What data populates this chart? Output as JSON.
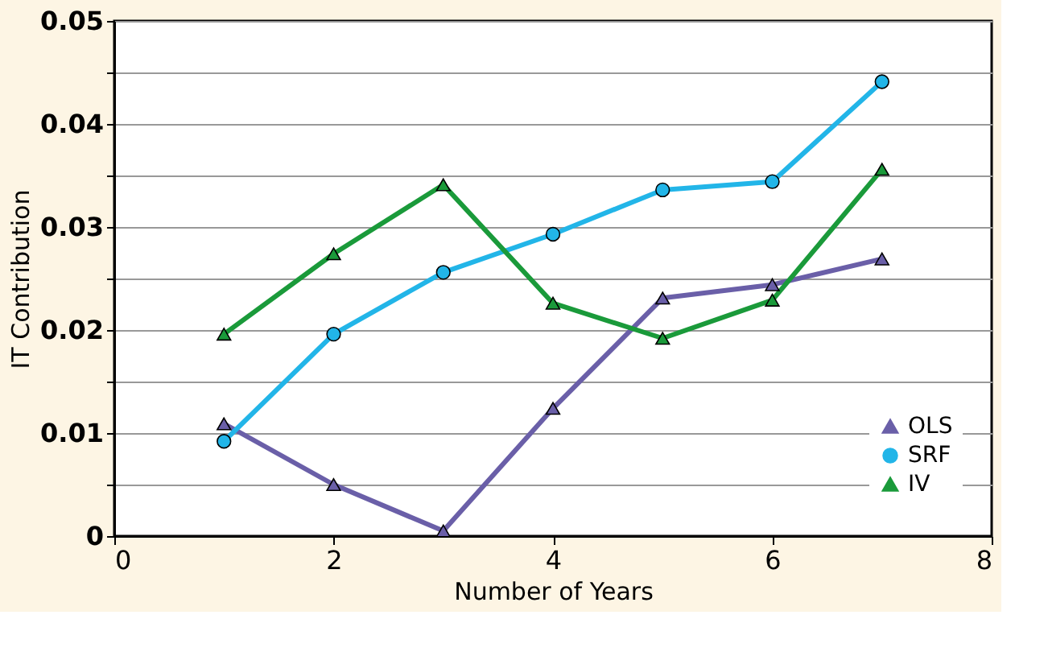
{
  "chart_data": {
    "type": "line",
    "xlabel": "Number of Years",
    "ylabel": "IT Contribution",
    "x": [
      1,
      2,
      3,
      4,
      5,
      6,
      7
    ],
    "series": [
      {
        "name": "OLS",
        "color": "#6a5fa8",
        "marker": "triangle",
        "values": [
          0.0109,
          0.005,
          0.0005,
          0.0124,
          0.0231,
          0.0244,
          0.0269
        ]
      },
      {
        "name": "SRF",
        "color": "#22b5e8",
        "marker": "circle",
        "values": [
          0.0092,
          0.0196,
          0.0256,
          0.0293,
          0.0336,
          0.0344,
          0.0441
        ]
      },
      {
        "name": "IV",
        "color": "#1a9a3a",
        "marker": "triangle",
        "values": [
          0.0196,
          0.0274,
          0.0341,
          0.0226,
          0.0192,
          0.0229,
          0.0356
        ]
      }
    ],
    "xlim": [
      0,
      8
    ],
    "xticks": [
      0,
      2,
      4,
      6,
      8
    ],
    "ylim": [
      0,
      0.05
    ],
    "yticks": [
      0,
      {
        "value": 0.005,
        "label": null
      },
      0.01,
      {
        "value": 0.015,
        "label": null
      },
      0.02,
      {
        "value": 0.025,
        "label": null
      },
      0.03,
      {
        "value": 0.035,
        "label": null
      },
      0.04,
      {
        "value": 0.045,
        "label": null
      },
      0.05
    ],
    "grid": "y",
    "legend": "bottom right",
    "line_style": "solid"
  }
}
